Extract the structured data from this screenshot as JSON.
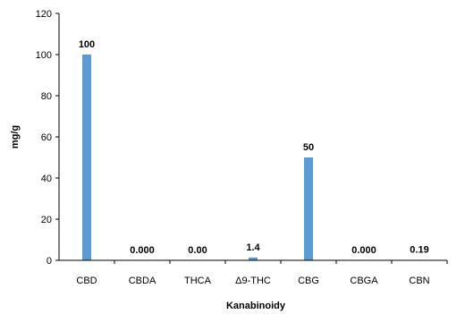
{
  "chart_data": {
    "type": "bar",
    "title": "",
    "xlabel": "Kanabinoidy",
    "ylabel": "mg/g",
    "ylim": [
      0,
      120
    ],
    "yticks": [
      0,
      20,
      40,
      60,
      80,
      100,
      120
    ],
    "grid": false,
    "legend": "none",
    "bar_color": "#5b9bd5",
    "categories": [
      "CBD",
      "CBDA",
      "THCA",
      "Δ9-THC",
      "CBG",
      "CBGA",
      "CBN"
    ],
    "values": [
      100,
      0,
      0,
      1.4,
      50,
      0,
      0.19
    ],
    "data_labels": [
      "100",
      "0.000",
      "0.00",
      "1.4",
      "50",
      "0.000",
      "0.19"
    ]
  }
}
